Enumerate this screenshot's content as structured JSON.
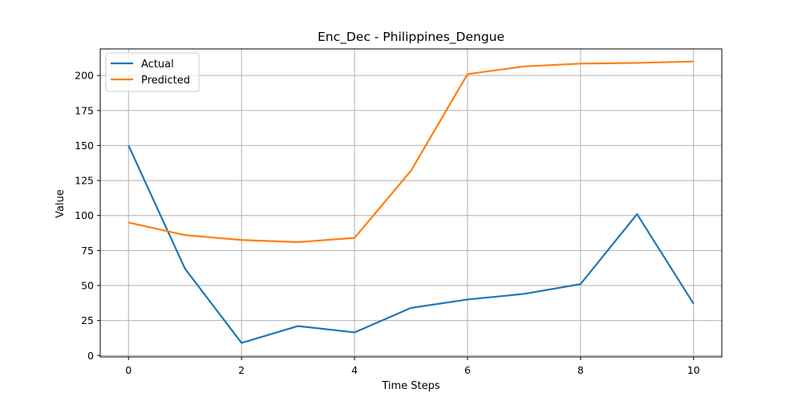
{
  "chart_data": {
    "type": "line",
    "title": "Enc_Dec - Philippines_Dengue",
    "xlabel": "Time Steps",
    "ylabel": "Value",
    "x": [
      0,
      1,
      2,
      3,
      4,
      5,
      6,
      7,
      8,
      9,
      10
    ],
    "xlim": [
      -0.5,
      10.5
    ],
    "ylim": [
      -1,
      219
    ],
    "x_ticks": [
      0,
      2,
      4,
      6,
      8,
      10
    ],
    "y_ticks": [
      0,
      25,
      50,
      75,
      100,
      125,
      150,
      175,
      200
    ],
    "grid": true,
    "legend_position": "top-left",
    "series": [
      {
        "name": "Actual",
        "color": "#1f77b4",
        "values": [
          150,
          62,
          9,
          21,
          16.5,
          34,
          40,
          44,
          51,
          101,
          37
        ]
      },
      {
        "name": "Predicted",
        "color": "#ff7f0e",
        "values": [
          95,
          86,
          82.5,
          81,
          84,
          132,
          201,
          206.5,
          208.5,
          209,
          210
        ]
      }
    ]
  }
}
